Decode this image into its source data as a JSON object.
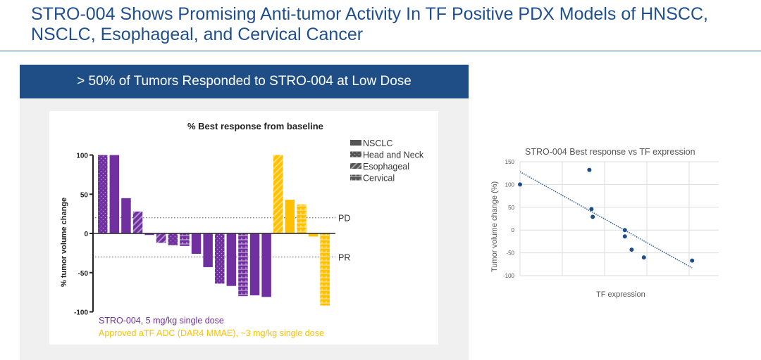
{
  "slide": {
    "title": "STRO-004 Shows Promising Anti-tumor Activity In TF Positive PDX Models of HNSCC, NSCLC, Esophageal, and Cervical Cancer",
    "panel_header": "> 50% of Tumors Responded to STRO-004 at Low Dose"
  },
  "colors": {
    "title": "#1f4f8f",
    "header": "#1f4e87",
    "purple": "#7030a0",
    "yellow": "#ffc000",
    "scatter": "#1f4e87"
  },
  "chart_data": [
    {
      "type": "bar",
      "title": "% Best response from baseline",
      "ylabel": "% tumor volume change",
      "ylim": [
        -100,
        100
      ],
      "yticks": [
        "100",
        "50",
        "0",
        "-50",
        "-100"
      ],
      "reference_lines": [
        {
          "label": "PD",
          "value": 20
        },
        {
          "label": "PR",
          "value": -30
        }
      ],
      "legend": [
        "NSCLC",
        "Head and Neck",
        "Esophageal",
        "Cervical"
      ],
      "legend_placement": "top-right",
      "series": [
        {
          "name": "STRO-004, 5 mg/kg single dose",
          "color": "#7030a0",
          "values": [
            100,
            100,
            45,
            28,
            -2,
            -12,
            -15,
            -16,
            -26,
            -43,
            -64,
            -67,
            -80,
            -79,
            -81
          ],
          "tumor_types": [
            "Head and Neck",
            "NSCLC",
            "NSCLC",
            "Esophageal",
            "NSCLC",
            "Esophageal",
            "Head and Neck",
            "Cervical",
            "NSCLC",
            "NSCLC",
            "Head and Neck",
            "NSCLC",
            "Cervical",
            "NSCLC",
            "NSCLC"
          ]
        },
        {
          "name": "Approved aTF ADC (DAR4 MMAE), ~3 mg/kg single dose",
          "color": "#ffc000",
          "values": [
            100,
            43,
            37,
            -4,
            -92
          ],
          "tumor_types": [
            "Esophageal",
            "NSCLC",
            "Cervical",
            "NSCLC",
            "Cervical"
          ]
        }
      ]
    },
    {
      "type": "scatter",
      "title": "STRO-004 Best response vs TF expression",
      "xlabel": "TF expression",
      "ylabel": "Tumor volume change (%)",
      "ylim": [
        -100,
        150
      ],
      "yticks": [
        "150",
        "100",
        "50",
        "0",
        "-50",
        "-100"
      ],
      "xlim": [
        0,
        5
      ],
      "grid": true,
      "trendline": "linear",
      "points": [
        [
          0,
          100
        ],
        [
          1.64,
          132
        ],
        [
          1.69,
          46
        ],
        [
          1.72,
          29
        ],
        [
          2.48,
          0
        ],
        [
          2.48,
          -14
        ],
        [
          2.64,
          -43
        ],
        [
          2.93,
          -60
        ],
        [
          4.07,
          -67
        ]
      ],
      "trend": [
        [
          0,
          128
        ],
        [
          4.07,
          -83
        ]
      ]
    }
  ]
}
